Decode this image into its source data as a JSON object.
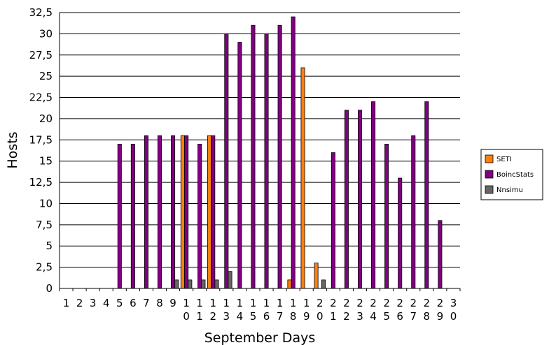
{
  "chart_data": {
    "type": "bar",
    "title": "",
    "xlabel": "September Days",
    "ylabel": "Hosts",
    "ylim": [
      0,
      32.5
    ],
    "yticks": [
      "0",
      "2,5",
      "5",
      "7,5",
      "10",
      "12,5",
      "15",
      "17,5",
      "20",
      "22,5",
      "25",
      "27,5",
      "30",
      "32,5"
    ],
    "grid": true,
    "legend_position": "right",
    "categories": [
      "1",
      "2",
      "3",
      "4",
      "5",
      "6",
      "7",
      "8",
      "9",
      "10",
      "11",
      "12",
      "13",
      "14",
      "15",
      "16",
      "17",
      "18",
      "19",
      "20",
      "21",
      "22",
      "23",
      "24",
      "25",
      "26",
      "27",
      "28",
      "29",
      "30"
    ],
    "series": [
      {
        "name": "SETI",
        "color": "#ff7f0e",
        "values": [
          0,
          0,
          0,
          0,
          0,
          0,
          0,
          0,
          0,
          18,
          0,
          18,
          0,
          0,
          0,
          0,
          0,
          1,
          26,
          3,
          0,
          0,
          0,
          0,
          0,
          0,
          0,
          0,
          0,
          0
        ]
      },
      {
        "name": "BoincStats",
        "color": "#800080",
        "values": [
          0,
          0,
          0,
          0,
          17,
          17,
          18,
          18,
          18,
          18,
          17,
          18,
          30,
          29,
          31,
          30,
          31,
          32,
          0,
          0,
          16,
          21,
          21,
          22,
          17,
          13,
          18,
          22,
          8,
          0
        ]
      },
      {
        "name": "Nnsimu",
        "color": "#666666",
        "values": [
          0,
          0,
          0,
          0,
          0,
          0,
          0,
          0,
          1,
          1,
          1,
          1,
          2,
          0,
          0,
          0,
          0,
          0,
          0,
          1,
          0,
          0,
          0,
          0,
          0,
          0,
          0,
          0,
          0,
          0
        ]
      }
    ]
  }
}
